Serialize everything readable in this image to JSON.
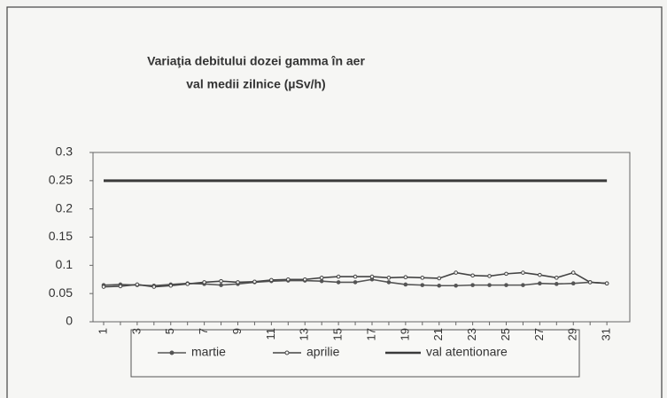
{
  "chart_data": {
    "type": "line",
    "title": "Variaţia debitului dozei gamma în aer",
    "subtitle": "val medii zilnice (µSv/h)",
    "categories": [
      "1",
      null,
      "3",
      null,
      "5",
      null,
      "7",
      null,
      "9",
      null,
      "11",
      null,
      "13",
      null,
      "15",
      null,
      "17",
      null,
      "19",
      null,
      "21",
      null,
      "23",
      null,
      "25",
      null,
      "27",
      null,
      "29",
      null,
      "31"
    ],
    "series": [
      {
        "name": "martie",
        "color": "#555555",
        "values": [
          0.065,
          0.066,
          0.065,
          0.064,
          0.066,
          0.068,
          0.067,
          0.065,
          0.067,
          0.07,
          0.072,
          0.073,
          0.073,
          0.072,
          0.07,
          0.07,
          0.075,
          0.07,
          0.066,
          0.065,
          0.064,
          0.064,
          0.065,
          0.065,
          0.065,
          0.065,
          0.068,
          0.067,
          0.068,
          0.07,
          0.068
        ]
      },
      {
        "name": "aprilie",
        "color": "#444444",
        "values": [
          0.062,
          0.063,
          0.066,
          0.062,
          0.064,
          0.067,
          0.07,
          0.072,
          0.07,
          0.071,
          0.074,
          0.075,
          0.075,
          0.078,
          0.08,
          0.08,
          0.08,
          0.078,
          0.079,
          0.078,
          0.077,
          0.087,
          0.082,
          0.081,
          0.085,
          0.087,
          0.083,
          0.078,
          0.087,
          0.07,
          0.068
        ]
      },
      {
        "name": "val atentionare",
        "color": "#3a3a3a",
        "values": [
          0.25,
          0.25,
          0.25,
          0.25,
          0.25,
          0.25,
          0.25,
          0.25,
          0.25,
          0.25,
          0.25,
          0.25,
          0.25,
          0.25,
          0.25,
          0.25,
          0.25,
          0.25,
          0.25,
          0.25,
          0.25,
          0.25,
          0.25,
          0.25,
          0.25,
          0.25,
          0.25,
          0.25,
          0.25,
          0.25,
          0.25
        ]
      }
    ],
    "ylim": [
      0,
      0.3
    ],
    "yticks": [
      0,
      0.05,
      0.1,
      0.15,
      0.2,
      0.25,
      0.3
    ],
    "legend": "bottom"
  }
}
